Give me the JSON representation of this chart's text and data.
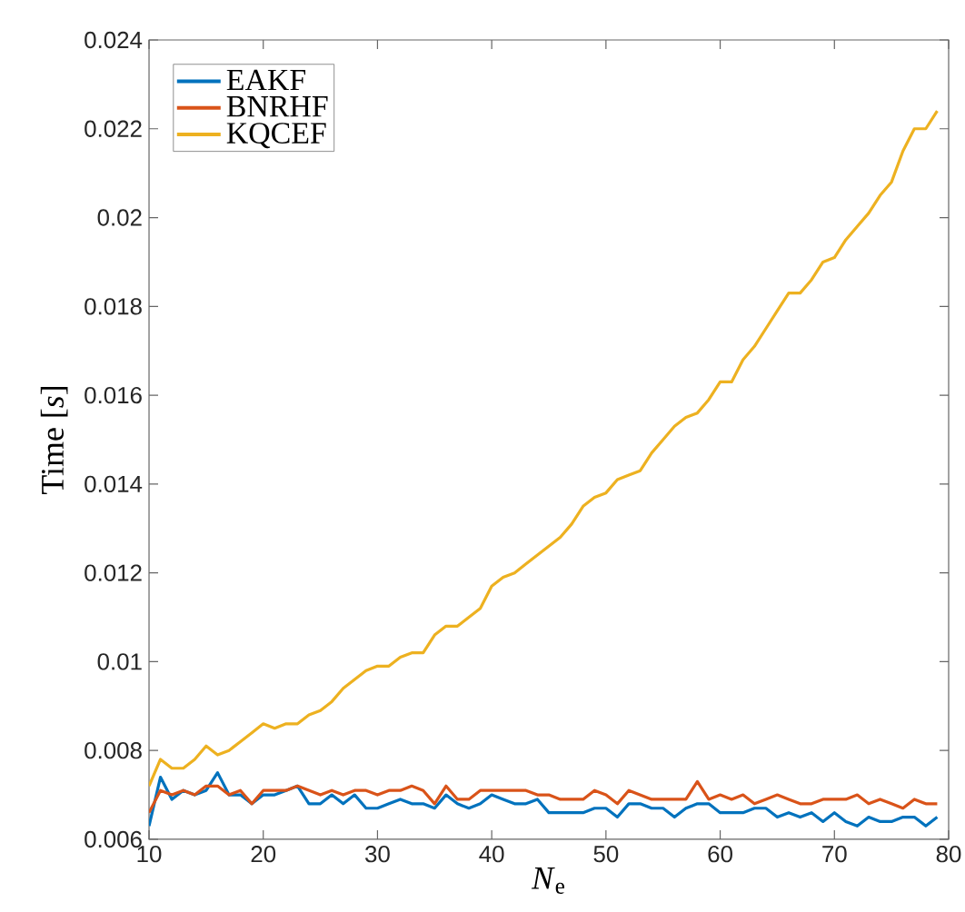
{
  "chart_data": {
    "type": "line",
    "xlabel": "*N*$_{e}$",
    "ylabel": "Time [*s*]",
    "x": [
      10,
      11,
      12,
      13,
      14,
      15,
      16,
      17,
      18,
      19,
      20,
      21,
      22,
      23,
      24,
      25,
      26,
      27,
      28,
      29,
      30,
      31,
      32,
      33,
      34,
      35,
      36,
      37,
      38,
      39,
      40,
      41,
      42,
      43,
      44,
      45,
      46,
      47,
      48,
      49,
      50,
      51,
      52,
      53,
      54,
      55,
      56,
      57,
      58,
      59,
      60,
      61,
      62,
      63,
      64,
      65,
      66,
      67,
      68,
      69,
      70,
      71,
      72,
      73,
      74,
      75,
      76,
      77,
      78,
      79
    ],
    "series": [
      {
        "name": "EAKF",
        "color": "#0072bd",
        "values": [
          0.0063,
          0.0074,
          0.0069,
          0.0071,
          0.007,
          0.0071,
          0.0075,
          0.007,
          0.007,
          0.0068,
          0.007,
          0.007,
          0.0071,
          0.0072,
          0.0068,
          0.0068,
          0.007,
          0.0068,
          0.007,
          0.0067,
          0.0067,
          0.0068,
          0.0069,
          0.0068,
          0.0068,
          0.0067,
          0.007,
          0.0068,
          0.0067,
          0.0068,
          0.007,
          0.0069,
          0.0068,
          0.0068,
          0.0069,
          0.0066,
          0.0066,
          0.0066,
          0.0066,
          0.0067,
          0.0067,
          0.0065,
          0.0068,
          0.0068,
          0.0067,
          0.0067,
          0.0065,
          0.0067,
          0.0068,
          0.0068,
          0.0066,
          0.0066,
          0.0066,
          0.0067,
          0.0067,
          0.0065,
          0.0066,
          0.0065,
          0.0066,
          0.0064,
          0.0066,
          0.0064,
          0.0063,
          0.0065,
          0.0064,
          0.0064,
          0.0065,
          0.0065,
          0.0063,
          0.0065
        ]
      },
      {
        "name": "BNRHF",
        "color": "#d95319",
        "values": [
          0.0066,
          0.0071,
          0.007,
          0.0071,
          0.007,
          0.0072,
          0.0072,
          0.007,
          0.0071,
          0.0068,
          0.0071,
          0.0071,
          0.0071,
          0.0072,
          0.0071,
          0.007,
          0.0071,
          0.007,
          0.0071,
          0.0071,
          0.007,
          0.0071,
          0.0071,
          0.0072,
          0.0071,
          0.0068,
          0.0072,
          0.0069,
          0.0069,
          0.0071,
          0.0071,
          0.0071,
          0.0071,
          0.0071,
          0.007,
          0.007,
          0.0069,
          0.0069,
          0.0069,
          0.0071,
          0.007,
          0.0068,
          0.0071,
          0.007,
          0.0069,
          0.0069,
          0.0069,
          0.0069,
          0.0073,
          0.0069,
          0.007,
          0.0069,
          0.007,
          0.0068,
          0.0069,
          0.007,
          0.0069,
          0.0068,
          0.0068,
          0.0069,
          0.0069,
          0.0069,
          0.007,
          0.0068,
          0.0069,
          0.0068,
          0.0067,
          0.0069,
          0.0068,
          0.0068
        ]
      },
      {
        "name": "KQCEF",
        "color": "#edb120",
        "values": [
          0.0072,
          0.0078,
          0.0076,
          0.0076,
          0.0078,
          0.0081,
          0.0079,
          0.008,
          0.0082,
          0.0084,
          0.0086,
          0.0085,
          0.0086,
          0.0086,
          0.0088,
          0.0089,
          0.0091,
          0.0094,
          0.0096,
          0.0098,
          0.0099,
          0.0099,
          0.0101,
          0.0102,
          0.0102,
          0.0106,
          0.0108,
          0.0108,
          0.011,
          0.0112,
          0.0117,
          0.0119,
          0.012,
          0.0122,
          0.0124,
          0.0126,
          0.0128,
          0.0131,
          0.0135,
          0.0137,
          0.0138,
          0.0141,
          0.0142,
          0.0143,
          0.0147,
          0.015,
          0.0153,
          0.0155,
          0.0156,
          0.0159,
          0.0163,
          0.0163,
          0.0168,
          0.0171,
          0.0175,
          0.0179,
          0.0183,
          0.0183,
          0.0186,
          0.019,
          0.0191,
          0.0195,
          0.0198,
          0.0201,
          0.0205,
          0.0208,
          0.0215,
          0.022,
          0.022,
          0.0224
        ]
      }
    ],
    "xlim": [
      10,
      80
    ],
    "xticks": [
      10,
      20,
      30,
      40,
      50,
      60,
      70,
      80
    ],
    "ylim": [
      0.006,
      0.024
    ],
    "yticks": [
      0.006,
      0.008,
      0.01,
      0.012,
      0.014,
      0.016,
      0.018,
      0.02,
      0.022,
      0.024
    ],
    "legend": "top left",
    "grid": false,
    "line_style": "solid",
    "marker": "none"
  }
}
